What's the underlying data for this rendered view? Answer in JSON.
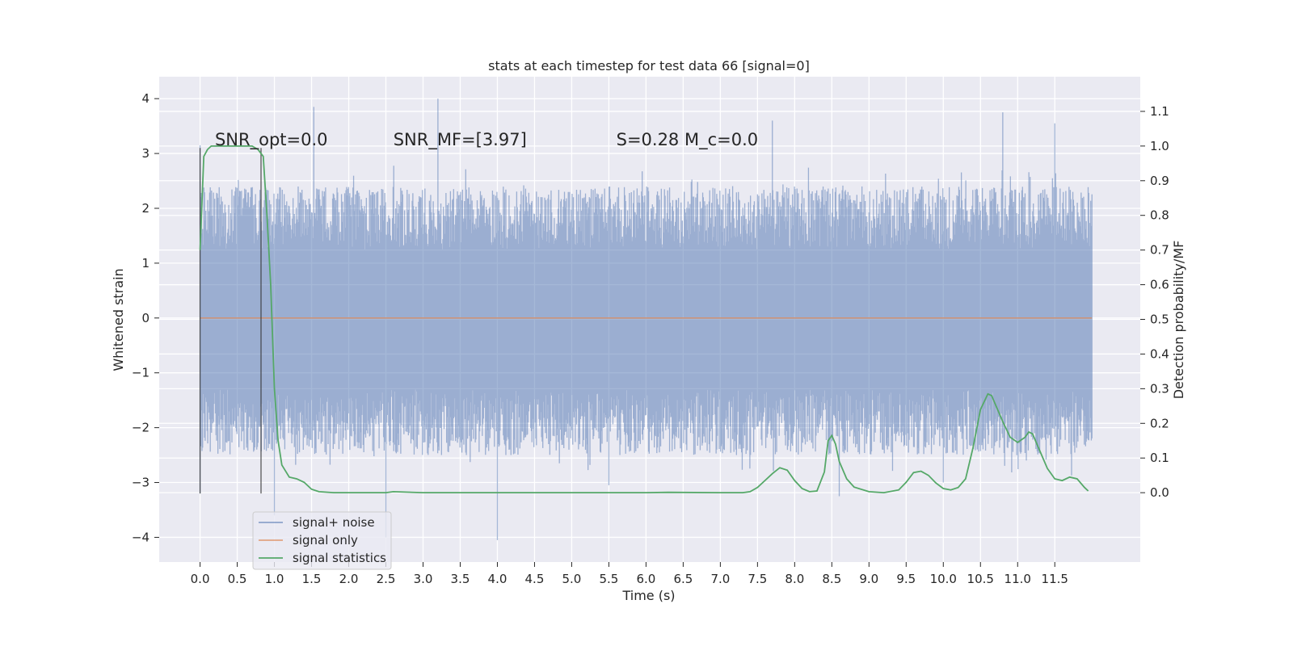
{
  "chart_data": {
    "type": "line",
    "title": "stats at each timestep for test data 66 [signal=0]",
    "xlabel": "Time (s)",
    "ylabel": "Whitened strain",
    "ylabel_right": "Detection probability/MF",
    "xlim": [
      -0.55,
      12.65
    ],
    "ylim": [
      -4.45,
      4.4
    ],
    "ylim_right": [
      -0.2,
      1.2
    ],
    "x_ticks": [
      "0.0",
      "0.5",
      "1.0",
      "1.5",
      "2.0",
      "2.5",
      "3.0",
      "3.5",
      "4.0",
      "4.5",
      "5.0",
      "5.5",
      "6.0",
      "6.5",
      "7.0",
      "7.5",
      "8.0",
      "8.5",
      "9.0",
      "9.5",
      "10.0",
      "10.5",
      "11.0",
      "11.5"
    ],
    "y_ticks": [
      -4,
      -3,
      -2,
      -1,
      0,
      1,
      2,
      3,
      4
    ],
    "y_tick_labels": [
      "−4",
      "−3",
      "−2",
      "−1",
      "0",
      "1",
      "2",
      "3",
      "4"
    ],
    "y_ticks_right": [
      "0.0",
      "0.1",
      "0.2",
      "0.3",
      "0.4",
      "0.5",
      "0.6",
      "0.7",
      "0.8",
      "0.9",
      "1.0",
      "1.1"
    ],
    "grid": true,
    "legend_position": "lower-left",
    "annotations": [
      {
        "text": "SNR_opt=0.0",
        "x": 0.2,
        "y": 3.15
      },
      {
        "text": "SNR_MF=[3.97]",
        "x": 2.6,
        "y": 3.15
      },
      {
        "text": "S=0.28   M_c=0.0",
        "x": 5.6,
        "y": 3.15
      }
    ],
    "vlines": [
      0.0,
      0.82
    ],
    "series": [
      {
        "name": "signal+ noise",
        "color": "#4c72b0",
        "style": "dense-noise",
        "x_range": [
          0.0,
          12.0
        ],
        "band": [
          -1.3,
          1.25
        ],
        "envelope_typical": [
          -2.5,
          2.4
        ],
        "extremes": [
          {
            "x": 0.0,
            "y": 3.15
          },
          {
            "x": 0.0,
            "y": -3.2
          },
          {
            "x": 1.0,
            "y": -3.6
          },
          {
            "x": 1.53,
            "y": 3.85
          },
          {
            "x": 2.5,
            "y": -4.0
          },
          {
            "x": 3.2,
            "y": 4.0
          },
          {
            "x": 4.0,
            "y": -4.05
          },
          {
            "x": 5.5,
            "y": -3.05
          },
          {
            "x": 7.7,
            "y": 3.6
          },
          {
            "x": 8.6,
            "y": -3.25
          },
          {
            "x": 10.0,
            "y": -3.0
          },
          {
            "x": 10.8,
            "y": 3.75
          },
          {
            "x": 11.5,
            "y": 3.55
          }
        ]
      },
      {
        "name": "signal only",
        "color": "#dd8452",
        "x": [
          0.0,
          12.0
        ],
        "y": [
          0.0,
          0.0
        ]
      },
      {
        "name": "signal statistics",
        "color": "#55a868",
        "axis": "right",
        "x": [
          0.0,
          0.05,
          0.1,
          0.15,
          0.2,
          0.3,
          0.5,
          0.7,
          0.78,
          0.85,
          0.9,
          0.95,
          1.0,
          1.05,
          1.1,
          1.2,
          1.3,
          1.4,
          1.5,
          1.6,
          1.8,
          2.0,
          2.5,
          2.6,
          3.0,
          4.0,
          5.0,
          6.0,
          6.3,
          7.0,
          7.3,
          7.4,
          7.5,
          7.6,
          7.7,
          7.8,
          7.9,
          8.0,
          8.1,
          8.2,
          8.3,
          8.4,
          8.45,
          8.5,
          8.55,
          8.6,
          8.7,
          8.8,
          9.0,
          9.2,
          9.4,
          9.5,
          9.6,
          9.7,
          9.8,
          9.9,
          10.0,
          10.1,
          10.2,
          10.3,
          10.4,
          10.5,
          10.6,
          10.65,
          10.7,
          10.8,
          10.9,
          11.0,
          11.1,
          11.15,
          11.2,
          11.3,
          11.4,
          11.5,
          11.6,
          11.7,
          11.8,
          11.9,
          11.95
        ],
        "y": [
          0.7,
          0.97,
          0.99,
          1.0,
          1.0,
          1.0,
          1.0,
          1.0,
          0.99,
          0.97,
          0.8,
          0.6,
          0.3,
          0.15,
          0.08,
          0.045,
          0.04,
          0.03,
          0.01,
          0.003,
          0.0,
          0.0,
          0.0,
          0.003,
          0.0,
          0.0,
          0.0,
          0.0,
          0.001,
          0.0,
          0.0,
          0.003,
          0.015,
          0.035,
          0.055,
          0.072,
          0.065,
          0.035,
          0.012,
          0.003,
          0.005,
          0.06,
          0.15,
          0.165,
          0.14,
          0.09,
          0.04,
          0.016,
          0.003,
          0.0,
          0.008,
          0.03,
          0.058,
          0.062,
          0.05,
          0.028,
          0.012,
          0.008,
          0.015,
          0.04,
          0.13,
          0.24,
          0.285,
          0.28,
          0.255,
          0.205,
          0.16,
          0.145,
          0.16,
          0.175,
          0.17,
          0.12,
          0.07,
          0.04,
          0.035,
          0.045,
          0.04,
          0.015,
          0.005
        ]
      }
    ]
  }
}
